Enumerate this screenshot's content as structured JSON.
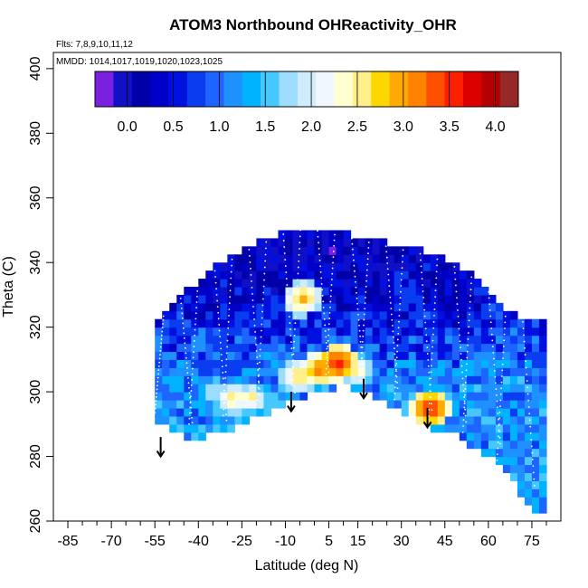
{
  "chart_data": {
    "type": "heatmap",
    "title": "ATOM3 Northbound OHReactivity_OHR",
    "flights_label": "Flts: 7,8,9,10,11,12",
    "dates_label": "MMDD: 1014,1017,1019,1020,1023,1025",
    "xlabel": "Latitude (deg N)",
    "ylabel": "Theta (C)",
    "xlim": [
      -90,
      85
    ],
    "ylim": [
      260,
      405
    ],
    "x_ticks": [
      -85,
      -70,
      -55,
      -40,
      -25,
      -10,
      5,
      15,
      30,
      45,
      60,
      75
    ],
    "x_minor_ticks": [
      -80,
      -75,
      -65,
      -60,
      -50,
      -45,
      -35,
      -30,
      -20,
      -15,
      -5,
      0,
      10,
      20,
      25,
      35,
      40,
      50,
      55,
      65,
      70,
      80
    ],
    "y_ticks": [
      260,
      280,
      300,
      320,
      340,
      360,
      380,
      400
    ],
    "colorbar": {
      "min": -0.35,
      "max": 4.25,
      "ticks": [
        0.0,
        0.5,
        1.0,
        1.5,
        2.0,
        2.5,
        3.0,
        3.5,
        4.0
      ],
      "tick_labels": [
        "0.0",
        "0.5",
        "1.0",
        "1.5",
        "2.0",
        "2.5",
        "3.0",
        "3.5",
        "4.0"
      ],
      "colors": [
        "#7b1fe0",
        "#1010c8",
        "#0000a8",
        "#0000c8",
        "#0010e0",
        "#0a3cf0",
        "#1e64ff",
        "#1e90ff",
        "#00b2ff",
        "#46c8ff",
        "#9bdcff",
        "#d2ecff",
        "#f0f8ff",
        "#ffffd2",
        "#fff08c",
        "#ffd700",
        "#ffaa00",
        "#ff8200",
        "#ff5000",
        "#ff1e00",
        "#dc0000",
        "#b40000",
        "#962828"
      ]
    },
    "column_top_theta": [
      [
        -55,
        321
      ],
      [
        -50,
        325
      ],
      [
        -45,
        330
      ],
      [
        -40,
        333
      ],
      [
        -35,
        337
      ],
      [
        -30,
        340
      ],
      [
        -25,
        343
      ],
      [
        -20,
        345
      ],
      [
        -15,
        347
      ],
      [
        -10,
        349
      ],
      [
        -5,
        350
      ],
      [
        0,
        350
      ],
      [
        5,
        349
      ],
      [
        10,
        348
      ],
      [
        15,
        347
      ],
      [
        20,
        346
      ],
      [
        25,
        345
      ],
      [
        30,
        344
      ],
      [
        35,
        343
      ],
      [
        40,
        342
      ],
      [
        45,
        340
      ],
      [
        50,
        338
      ],
      [
        55,
        335
      ],
      [
        60,
        331
      ],
      [
        65,
        326
      ],
      [
        70,
        322
      ],
      [
        75,
        321
      ],
      [
        78,
        321
      ]
    ],
    "column_bottom_theta": [
      [
        -55,
        292
      ],
      [
        -50,
        288
      ],
      [
        -45,
        286
      ],
      [
        -40,
        286
      ],
      [
        -35,
        287
      ],
      [
        -30,
        288
      ],
      [
        -25,
        290
      ],
      [
        -20,
        292
      ],
      [
        -15,
        294
      ],
      [
        -10,
        296
      ],
      [
        -5,
        298
      ],
      [
        0,
        300
      ],
      [
        5,
        301
      ],
      [
        10,
        302
      ],
      [
        15,
        301
      ],
      [
        20,
        299
      ],
      [
        25,
        297
      ],
      [
        30,
        294
      ],
      [
        35,
        291
      ],
      [
        40,
        289
      ],
      [
        45,
        288
      ],
      [
        50,
        286
      ],
      [
        55,
        283
      ],
      [
        60,
        280
      ],
      [
        65,
        276
      ],
      [
        70,
        270
      ],
      [
        75,
        262
      ],
      [
        78,
        262
      ]
    ],
    "background_ohr_by_theta": [
      [
        286,
        1.2
      ],
      [
        295,
        1.2
      ],
      [
        305,
        1.1
      ],
      [
        315,
        0.8
      ],
      [
        325,
        0.5
      ],
      [
        335,
        0.3
      ],
      [
        350,
        0.2
      ]
    ],
    "hotspots": [
      {
        "lat": -28,
        "theta": 298,
        "ohr": 2.8
      },
      {
        "lat": -22,
        "theta": 298,
        "ohr": 2.7
      },
      {
        "lat": -35,
        "theta": 300,
        "ohr": 2.2
      },
      {
        "lat": -5,
        "theta": 305,
        "ohr": 3.0
      },
      {
        "lat": 2,
        "theta": 307,
        "ohr": 3.4
      },
      {
        "lat": 8,
        "theta": 309,
        "ohr": 3.8
      },
      {
        "lat": 14,
        "theta": 307,
        "ohr": 2.8
      },
      {
        "lat": -4,
        "theta": 329,
        "ohr": 3.1
      },
      {
        "lat": 40,
        "theta": 295,
        "ohr": 3.7
      },
      {
        "lat": 42,
        "theta": 297,
        "ohr": 2.5
      }
    ],
    "arrows": [
      {
        "lat": -53,
        "theta_top": 286,
        "theta_tip": 280
      },
      {
        "lat": -8,
        "theta_top": 300,
        "theta_tip": 294
      },
      {
        "lat": 17,
        "theta_top": 304,
        "theta_tip": 298
      },
      {
        "lat": 39,
        "theta_top": 295,
        "theta_tip": 289
      }
    ]
  }
}
